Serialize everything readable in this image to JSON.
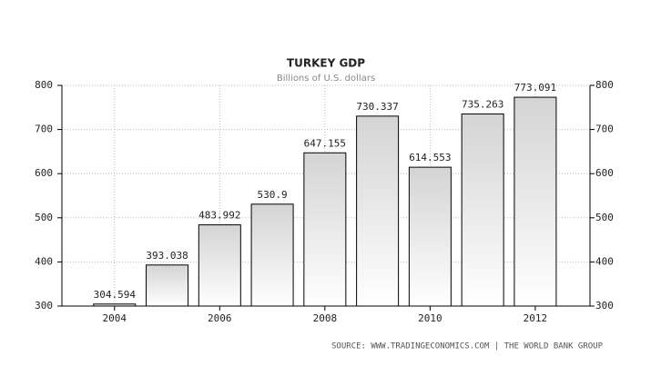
{
  "chart_data": {
    "type": "bar",
    "title": "TURKEY GDP",
    "subtitle": "Billions of U.S. dollars",
    "categories": [
      "2004",
      null,
      "2006",
      null,
      "2008",
      null,
      "2010",
      null,
      "2012"
    ],
    "values": [
      304.594,
      393.038,
      483.992,
      530.9,
      647.155,
      730.337,
      614.553,
      735.263,
      773.091
    ],
    "color": "#d4d4d4",
    "ylim": [
      300,
      800
    ],
    "yticks": [
      300,
      400,
      500,
      600,
      700,
      800
    ],
    "y2lim": [
      300,
      800
    ],
    "y2ticks": [
      300,
      400,
      500,
      600,
      700,
      800
    ],
    "grid": true,
    "source": "SOURCE: WWW.TRADINGECONOMICS.COM | THE WORLD BANK GROUP"
  }
}
